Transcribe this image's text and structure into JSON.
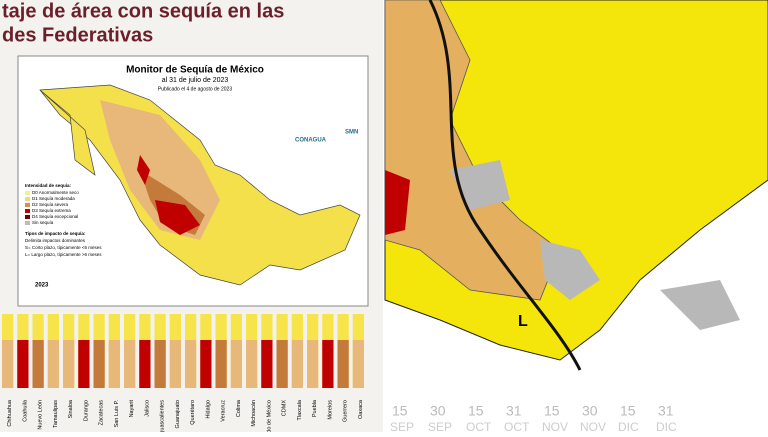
{
  "header": {
    "title_lines": [
      "taje de área con sequía en las",
      "des Federativas"
    ]
  },
  "map": {
    "title": "Monitor de Sequía de México",
    "subtitle": "al 31 de julio de 2023",
    "published": "Publicado el 4 de agosto de 2023",
    "year": "2023",
    "logos": [
      "CONAGUA",
      "SMN"
    ],
    "legend": {
      "title": "Intensidad de sequía:",
      "items": [
        "D0 Anormalmente seco",
        "D1 Sequía moderada",
        "D2 Sequía severa",
        "D3 Sequía extrema",
        "D4 Sequía excepcional",
        "Sin sequía"
      ],
      "impact_title": "Tipos de impacto de sequía:",
      "impact_items": [
        "Delimita impactos dominantes",
        "S= Corto plazo, típicamente <6 meses",
        "L= Largo plazo, típicamente >6 meses"
      ]
    }
  },
  "states": [
    "Chihuahua",
    "Coahuila",
    "Nuevo León",
    "Tamaulipas",
    "Sinaloa",
    "Durango",
    "Zacatecas",
    "San Luis P.",
    "Nayarit",
    "Jalisco",
    "Aguascalientes",
    "Guanajuato",
    "Querétaro",
    "Hidalgo",
    "Veracruz",
    "Colima",
    "Michoacán",
    "Edo de México",
    "CDMX",
    "Tlaxcala",
    "Puebla",
    "Morelos",
    "Guerrero",
    "Oaxaca"
  ],
  "zoom": {
    "marker": "L",
    "dates": [
      "15",
      "30",
      "15",
      "31",
      "15",
      "30",
      "15",
      "31"
    ],
    "months": [
      "SEP",
      "SEP",
      "OCT",
      "OCT",
      "NOV",
      "NOV",
      "DIC",
      "DIC"
    ]
  }
}
